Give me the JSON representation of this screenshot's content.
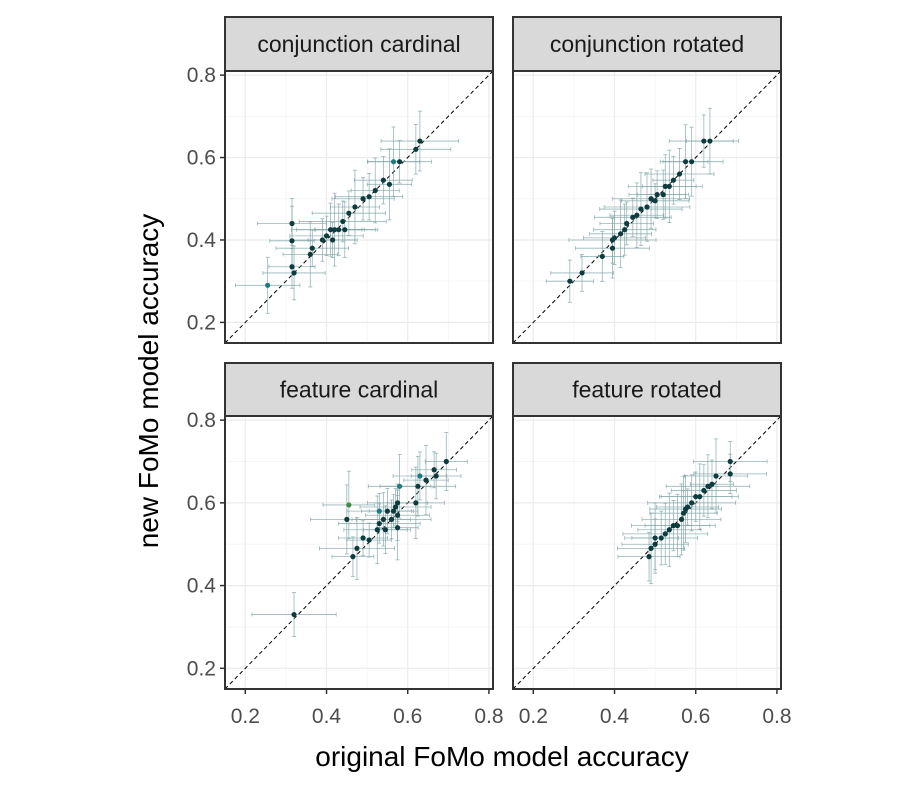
{
  "chart_data": {
    "type": "scatter",
    "layout": "facet-grid 2x2",
    "xlabel": "original FoMo model accuracy",
    "ylabel": "new FoMo model accuracy",
    "xlim": [
      0.15,
      0.81
    ],
    "ylim": [
      0.15,
      0.81
    ],
    "x_ticks": [
      "0.2",
      "0.4",
      "0.6",
      "0.8"
    ],
    "y_ticks": [
      "0.2",
      "0.4",
      "0.6",
      "0.8"
    ],
    "reference_line": "identity (y = x), dashed",
    "grid": true,
    "colors": {
      "panel_border": "#333333",
      "strip_fill": "#d9d9d9",
      "grid_major": "#ebebeb",
      "grid_minor": "#f5f5f5",
      "point_default": "#0d3b3e",
      "point_teal": "#1b7a82",
      "point_green": "#3e8e3e",
      "errorbar": "#7fa4a8"
    },
    "panels": [
      {
        "title": "conjunction cardinal",
        "points": [
          {
            "x": 0.255,
            "y": 0.29,
            "c": "teal"
          },
          {
            "x": 0.315,
            "y": 0.335
          },
          {
            "x": 0.32,
            "y": 0.32
          },
          {
            "x": 0.315,
            "y": 0.398
          },
          {
            "x": 0.315,
            "y": 0.44
          },
          {
            "x": 0.36,
            "y": 0.365
          },
          {
            "x": 0.365,
            "y": 0.38
          },
          {
            "x": 0.39,
            "y": 0.4
          },
          {
            "x": 0.4,
            "y": 0.41
          },
          {
            "x": 0.41,
            "y": 0.425
          },
          {
            "x": 0.415,
            "y": 0.4
          },
          {
            "x": 0.42,
            "y": 0.425
          },
          {
            "x": 0.43,
            "y": 0.425
          },
          {
            "x": 0.44,
            "y": 0.445
          },
          {
            "x": 0.445,
            "y": 0.425
          },
          {
            "x": 0.455,
            "y": 0.465
          },
          {
            "x": 0.47,
            "y": 0.48
          },
          {
            "x": 0.49,
            "y": 0.5
          },
          {
            "x": 0.505,
            "y": 0.505
          },
          {
            "x": 0.52,
            "y": 0.52
          },
          {
            "x": 0.54,
            "y": 0.545
          },
          {
            "x": 0.555,
            "y": 0.535
          },
          {
            "x": 0.565,
            "y": 0.59,
            "c": "teal"
          },
          {
            "x": 0.58,
            "y": 0.59
          },
          {
            "x": 0.62,
            "y": 0.62
          },
          {
            "x": 0.63,
            "y": 0.64
          }
        ]
      },
      {
        "title": "conjunction rotated",
        "points": [
          {
            "x": 0.29,
            "y": 0.3
          },
          {
            "x": 0.32,
            "y": 0.32
          },
          {
            "x": 0.37,
            "y": 0.36
          },
          {
            "x": 0.395,
            "y": 0.38
          },
          {
            "x": 0.395,
            "y": 0.4
          },
          {
            "x": 0.4,
            "y": 0.405
          },
          {
            "x": 0.415,
            "y": 0.415
          },
          {
            "x": 0.425,
            "y": 0.425
          },
          {
            "x": 0.43,
            "y": 0.44
          },
          {
            "x": 0.445,
            "y": 0.455
          },
          {
            "x": 0.455,
            "y": 0.46
          },
          {
            "x": 0.465,
            "y": 0.475
          },
          {
            "x": 0.48,
            "y": 0.48
          },
          {
            "x": 0.49,
            "y": 0.5
          },
          {
            "x": 0.5,
            "y": 0.495
          },
          {
            "x": 0.505,
            "y": 0.51
          },
          {
            "x": 0.52,
            "y": 0.51
          },
          {
            "x": 0.525,
            "y": 0.53
          },
          {
            "x": 0.535,
            "y": 0.53
          },
          {
            "x": 0.545,
            "y": 0.545
          },
          {
            "x": 0.56,
            "y": 0.56
          },
          {
            "x": 0.575,
            "y": 0.59
          },
          {
            "x": 0.59,
            "y": 0.59
          },
          {
            "x": 0.62,
            "y": 0.64
          },
          {
            "x": 0.635,
            "y": 0.64
          }
        ]
      },
      {
        "title": "feature cardinal",
        "points": [
          {
            "x": 0.32,
            "y": 0.33
          },
          {
            "x": 0.465,
            "y": 0.47
          },
          {
            "x": 0.475,
            "y": 0.49
          },
          {
            "x": 0.45,
            "y": 0.56
          },
          {
            "x": 0.455,
            "y": 0.595,
            "c": "green"
          },
          {
            "x": 0.49,
            "y": 0.515
          },
          {
            "x": 0.505,
            "y": 0.51
          },
          {
            "x": 0.525,
            "y": 0.535
          },
          {
            "x": 0.53,
            "y": 0.55
          },
          {
            "x": 0.53,
            "y": 0.58,
            "c": "teal"
          },
          {
            "x": 0.54,
            "y": 0.56
          },
          {
            "x": 0.545,
            "y": 0.535
          },
          {
            "x": 0.55,
            "y": 0.58
          },
          {
            "x": 0.56,
            "y": 0.56
          },
          {
            "x": 0.565,
            "y": 0.58
          },
          {
            "x": 0.57,
            "y": 0.59
          },
          {
            "x": 0.575,
            "y": 0.6
          },
          {
            "x": 0.575,
            "y": 0.57
          },
          {
            "x": 0.575,
            "y": 0.54
          },
          {
            "x": 0.58,
            "y": 0.64,
            "c": "teal"
          },
          {
            "x": 0.62,
            "y": 0.6
          },
          {
            "x": 0.625,
            "y": 0.64
          },
          {
            "x": 0.63,
            "y": 0.665,
            "c": "teal"
          },
          {
            "x": 0.645,
            "y": 0.655
          },
          {
            "x": 0.665,
            "y": 0.68
          },
          {
            "x": 0.67,
            "y": 0.665
          },
          {
            "x": 0.695,
            "y": 0.7
          }
        ]
      },
      {
        "title": "feature rotated",
        "points": [
          {
            "x": 0.485,
            "y": 0.47
          },
          {
            "x": 0.49,
            "y": 0.49
          },
          {
            "x": 0.5,
            "y": 0.5
          },
          {
            "x": 0.5,
            "y": 0.515
          },
          {
            "x": 0.515,
            "y": 0.515
          },
          {
            "x": 0.525,
            "y": 0.525
          },
          {
            "x": 0.535,
            "y": 0.535
          },
          {
            "x": 0.545,
            "y": 0.545
          },
          {
            "x": 0.555,
            "y": 0.545
          },
          {
            "x": 0.565,
            "y": 0.56
          },
          {
            "x": 0.57,
            "y": 0.575
          },
          {
            "x": 0.575,
            "y": 0.585
          },
          {
            "x": 0.58,
            "y": 0.59
          },
          {
            "x": 0.59,
            "y": 0.6
          },
          {
            "x": 0.6,
            "y": 0.615
          },
          {
            "x": 0.61,
            "y": 0.615
          },
          {
            "x": 0.62,
            "y": 0.63
          },
          {
            "x": 0.63,
            "y": 0.64
          },
          {
            "x": 0.64,
            "y": 0.645
          },
          {
            "x": 0.65,
            "y": 0.665
          },
          {
            "x": 0.685,
            "y": 0.67
          },
          {
            "x": 0.685,
            "y": 0.7
          }
        ]
      }
    ]
  }
}
